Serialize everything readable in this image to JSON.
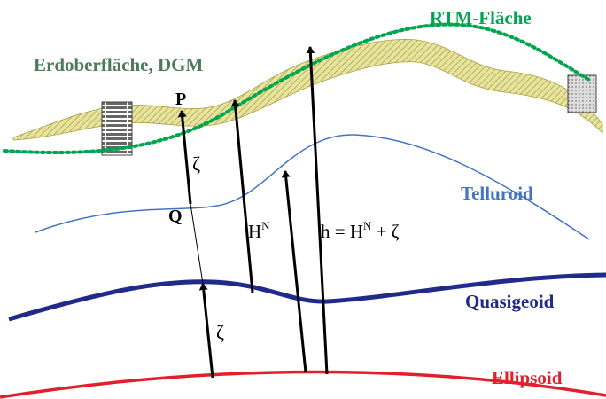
{
  "labels": {
    "rtm": "RTM-Fläche",
    "surface": "Erdoberfläche, DGM",
    "p": "P",
    "zeta_upper": "ζ",
    "q": "Q",
    "hn_h": "H",
    "hn_n": "N",
    "h_left": "h = H",
    "h_sup": "N",
    "h_right": " + ζ",
    "telluroid": "Telluroid",
    "quasigeoid": "Quasigeoid",
    "zeta_lower": "ζ",
    "ellipsoid": "Ellipsoid"
  }
}
